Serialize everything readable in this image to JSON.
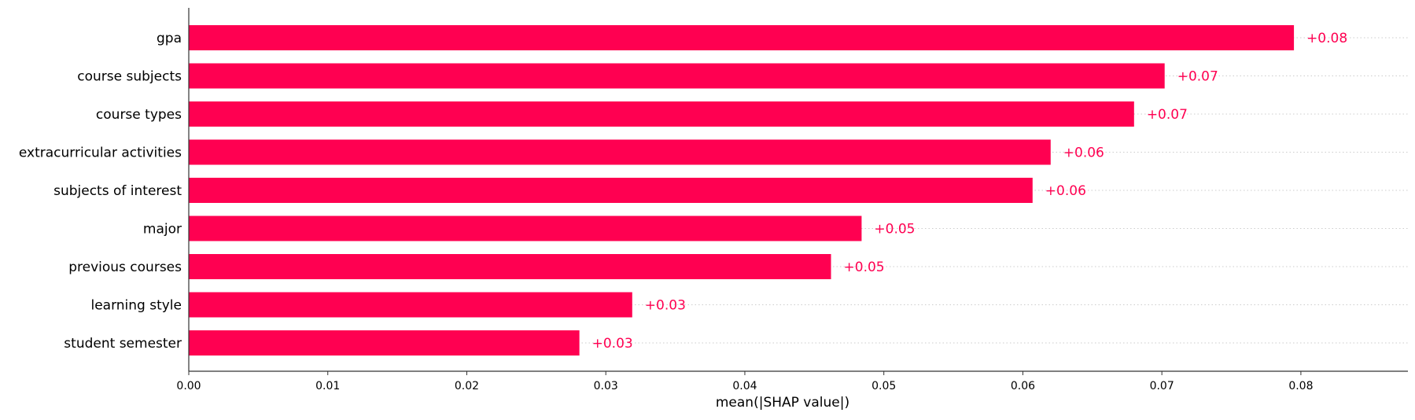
{
  "chart_data": {
    "type": "bar",
    "orientation": "horizontal",
    "categories": [
      "gpa",
      "course subjects",
      "course types",
      "extracurricular activities",
      "subjects of interest",
      "major",
      "previous courses",
      "learning style",
      "student semester"
    ],
    "values": [
      0.0795,
      0.0702,
      0.068,
      0.062,
      0.0607,
      0.0484,
      0.0462,
      0.0319,
      0.0281
    ],
    "value_labels": [
      "+0.08",
      "+0.07",
      "+0.07",
      "+0.06",
      "+0.06",
      "+0.05",
      "+0.05",
      "+0.03",
      "+0.03"
    ],
    "xlabel": "mean(|SHAP value|)",
    "ylabel": "",
    "xlim": [
      0,
      0.0877
    ],
    "xticks": [
      0.0,
      0.01,
      0.02,
      0.03,
      0.04,
      0.05,
      0.06,
      0.07,
      0.08
    ],
    "xtick_labels": [
      "0.00",
      "0.01",
      "0.02",
      "0.03",
      "0.04",
      "0.05",
      "0.06",
      "0.07",
      "0.08"
    ],
    "grid": "dotted horizontal row guides",
    "bar_color": "#ff0051",
    "label_color": "#ff0051",
    "axis_color": "#333333",
    "grid_color": "#cccccc"
  }
}
